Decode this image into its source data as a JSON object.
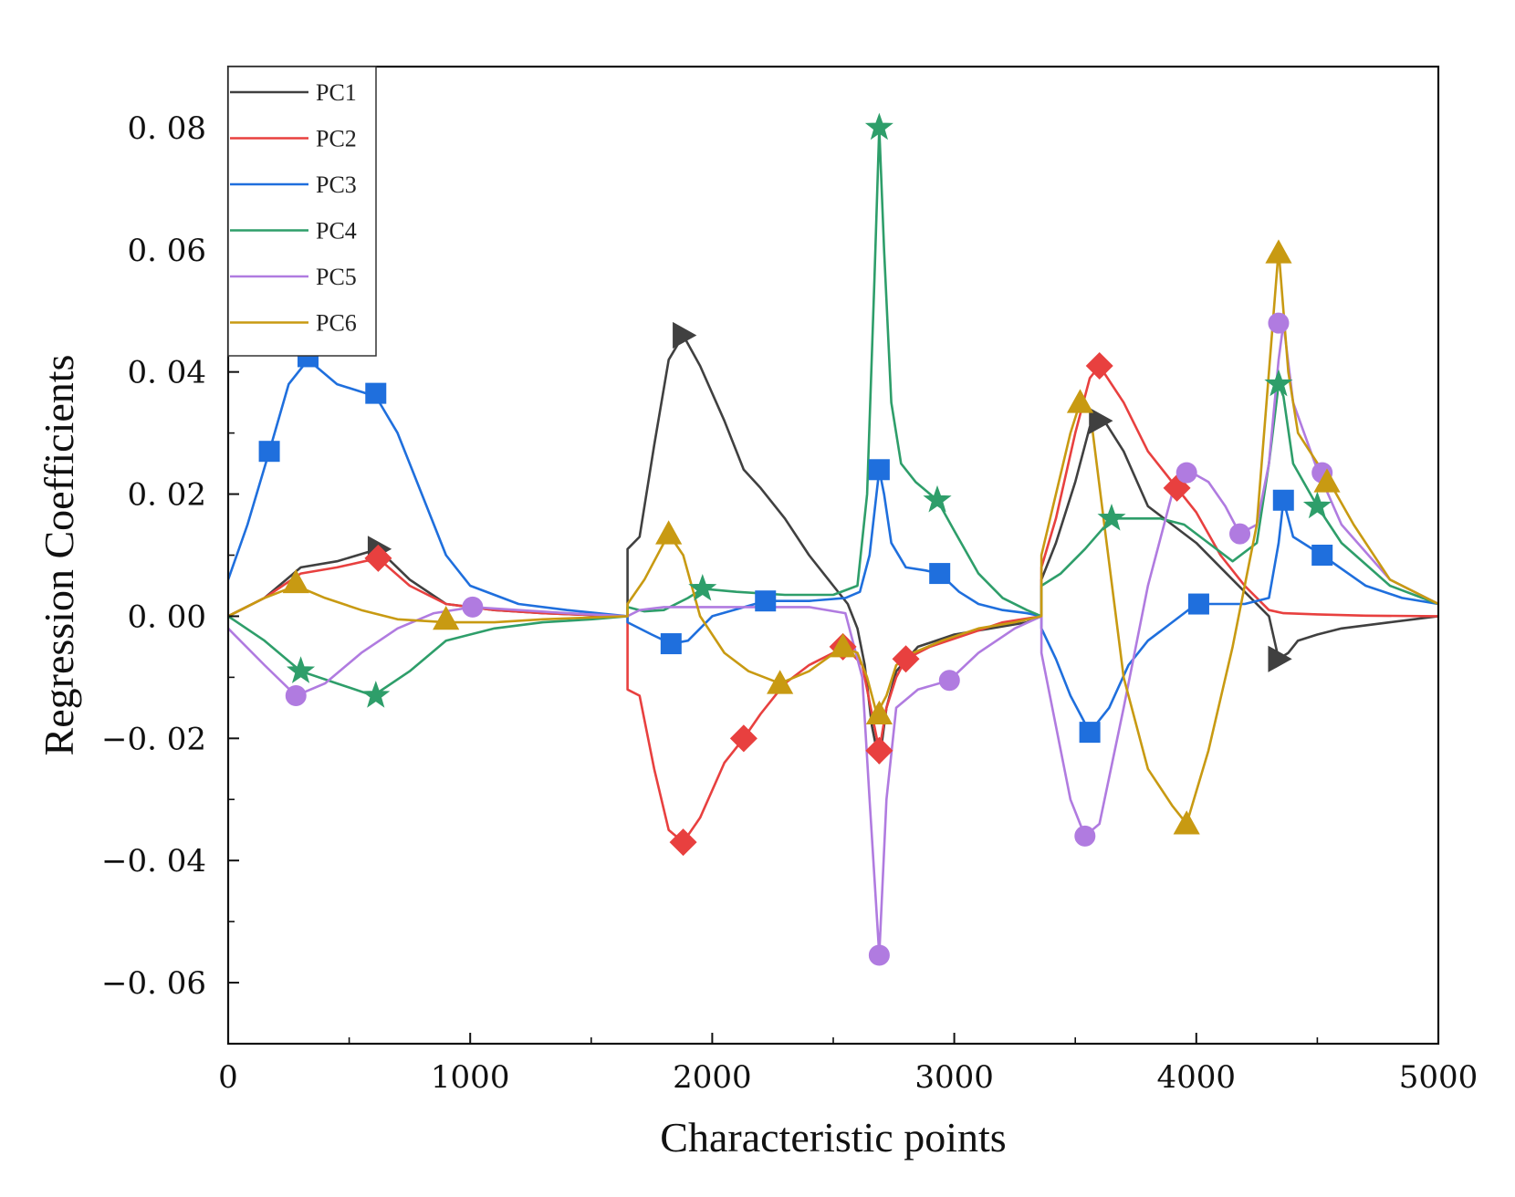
{
  "chart_data": {
    "type": "line",
    "title": "",
    "xlabel": "Characteristic points",
    "ylabel": "Regression Coefficients",
    "xlim": [
      0,
      5000
    ],
    "ylim": [
      -0.07,
      0.09
    ],
    "xticks": [
      0,
      1000,
      2000,
      3000,
      4000,
      5000
    ],
    "xtick_labels": [
      "0",
      "1000",
      "2000",
      "3000",
      "4000",
      "5000"
    ],
    "yticks": [
      -0.06,
      -0.04,
      -0.02,
      0.0,
      0.02,
      0.04,
      0.06,
      0.08
    ],
    "ytick_labels": [
      "−0. 06",
      "−0. 04",
      "−0. 02",
      "0. 00",
      "0. 02",
      "0. 04",
      "0. 06",
      "0. 08"
    ],
    "grid": false,
    "legend_position": "top-left",
    "series": [
      {
        "name": "PC1",
        "color": "#404040",
        "marker": "triangle-right",
        "x": [
          0,
          150,
          300,
          450,
          620,
          750,
          900,
          1100,
          1300,
          1500,
          1650,
          1650,
          1700,
          1760,
          1820,
          1880,
          1950,
          2050,
          2130,
          2200,
          2300,
          2400,
          2500,
          2560,
          2600,
          2630,
          2660,
          2690,
          2720,
          2760,
          2850,
          3000,
          3150,
          3300,
          3360,
          3360,
          3420,
          3500,
          3560,
          3620,
          3700,
          3800,
          3900,
          4000,
          4100,
          4200,
          4300,
          4340,
          4380,
          4420,
          4500,
          4600,
          4800,
          5000
        ],
        "y": [
          0.0,
          0.003,
          0.008,
          0.009,
          0.011,
          0.006,
          0.002,
          0.001,
          0.0005,
          0.0002,
          0.0,
          0.011,
          0.013,
          0.028,
          0.042,
          0.046,
          0.041,
          0.032,
          0.024,
          0.021,
          0.016,
          0.01,
          0.005,
          0.002,
          -0.002,
          -0.008,
          -0.018,
          -0.024,
          -0.015,
          -0.009,
          -0.005,
          -0.003,
          -0.002,
          -0.001,
          0.0,
          0.006,
          0.012,
          0.022,
          0.031,
          0.032,
          0.027,
          0.018,
          0.015,
          0.012,
          0.008,
          0.004,
          0.0,
          -0.007,
          -0.006,
          -0.004,
          -0.003,
          -0.002,
          -0.001,
          0.0
        ],
        "markers_x": [
          620,
          1880,
          3600,
          4340
        ],
        "markers_y": [
          0.011,
          0.046,
          0.032,
          -0.007
        ]
      },
      {
        "name": "PC2",
        "color": "#e8403f",
        "marker": "diamond",
        "x": [
          0,
          150,
          300,
          450,
          620,
          750,
          900,
          1100,
          1300,
          1500,
          1650,
          1650,
          1700,
          1760,
          1820,
          1880,
          1950,
          2050,
          2130,
          2200,
          2300,
          2400,
          2550,
          2620,
          2660,
          2690,
          2720,
          2760,
          2800,
          2900,
          3050,
          3200,
          3360,
          3360,
          3420,
          3500,
          3560,
          3600,
          3700,
          3800,
          3920,
          4000,
          4100,
          4200,
          4300,
          4360,
          4500,
          4700,
          5000
        ],
        "y": [
          0.0,
          0.003,
          0.007,
          0.008,
          0.0095,
          0.005,
          0.002,
          0.001,
          0.0005,
          0.0002,
          0.0,
          -0.012,
          -0.013,
          -0.025,
          -0.035,
          -0.037,
          -0.033,
          -0.024,
          -0.02,
          -0.016,
          -0.011,
          -0.008,
          -0.005,
          -0.008,
          -0.016,
          -0.022,
          -0.015,
          -0.01,
          -0.007,
          -0.005,
          -0.003,
          -0.001,
          0.0,
          0.008,
          0.016,
          0.03,
          0.039,
          0.041,
          0.035,
          0.027,
          0.021,
          0.017,
          0.01,
          0.005,
          0.001,
          0.0005,
          0.0003,
          0.0001,
          0.0
        ],
        "markers_x": [
          620,
          1880,
          2130,
          2540,
          2690,
          2800,
          3600,
          3920
        ],
        "markers_y": [
          0.0095,
          -0.037,
          -0.02,
          -0.005,
          -0.022,
          -0.007,
          0.041,
          0.021
        ]
      },
      {
        "name": "PC3",
        "color": "#1f6fdd",
        "marker": "square",
        "x": [
          0,
          80,
          170,
          250,
          330,
          450,
          610,
          700,
          800,
          900,
          1000,
          1200,
          1400,
          1650,
          1650,
          1750,
          1830,
          1900,
          2000,
          2220,
          2400,
          2550,
          2610,
          2650,
          2690,
          2710,
          2740,
          2800,
          2880,
          2940,
          3020,
          3100,
          3200,
          3300,
          3360,
          3360,
          3420,
          3480,
          3560,
          3640,
          3720,
          3800,
          3900,
          4000,
          4100,
          4200,
          4300,
          4340,
          4360,
          4400,
          4520,
          4700,
          4850,
          5000
        ],
        "y": [
          0.006,
          0.015,
          0.027,
          0.038,
          0.042,
          0.038,
          0.036,
          0.03,
          0.02,
          0.01,
          0.005,
          0.002,
          0.001,
          0.0,
          -0.001,
          -0.003,
          -0.0045,
          -0.004,
          0.0,
          0.0025,
          0.0025,
          0.003,
          0.004,
          0.01,
          0.024,
          0.02,
          0.012,
          0.008,
          0.0075,
          0.007,
          0.004,
          0.002,
          0.001,
          0.0005,
          0.0,
          -0.002,
          -0.007,
          -0.013,
          -0.019,
          -0.015,
          -0.008,
          -0.004,
          -0.001,
          0.002,
          0.002,
          0.002,
          0.003,
          0.012,
          0.019,
          0.013,
          0.01,
          0.005,
          0.003,
          0.002
        ],
        "markers_x": [
          170,
          330,
          610,
          1830,
          2220,
          2690,
          2940,
          3560,
          4010,
          4360,
          4520
        ],
        "markers_y": [
          0.027,
          0.0425,
          0.0365,
          -0.0045,
          0.0025,
          0.024,
          0.007,
          -0.019,
          0.002,
          0.019,
          0.01
        ]
      },
      {
        "name": "PC4",
        "color": "#2e9e6a",
        "marker": "star",
        "x": [
          0,
          150,
          300,
          450,
          600,
          750,
          900,
          1100,
          1300,
          1500,
          1650,
          1650,
          1720,
          1800,
          1900,
          1960,
          2100,
          2300,
          2500,
          2600,
          2640,
          2670,
          2690,
          2710,
          2740,
          2780,
          2840,
          2930,
          3000,
          3100,
          3200,
          3300,
          3360,
          3360,
          3440,
          3540,
          3650,
          3750,
          3850,
          3950,
          4050,
          4150,
          4250,
          4300,
          4340,
          4360,
          4400,
          4500,
          4600,
          4800,
          5000
        ],
        "y": [
          0.0,
          -0.004,
          -0.009,
          -0.011,
          -0.013,
          -0.009,
          -0.004,
          -0.002,
          -0.001,
          -0.0005,
          0.0,
          0.0015,
          0.0008,
          0.001,
          0.003,
          0.0045,
          0.004,
          0.0035,
          0.0035,
          0.005,
          0.02,
          0.055,
          0.08,
          0.06,
          0.035,
          0.025,
          0.022,
          0.019,
          0.014,
          0.007,
          0.003,
          0.001,
          0.0,
          0.005,
          0.007,
          0.011,
          0.016,
          0.016,
          0.016,
          0.015,
          0.012,
          0.009,
          0.012,
          0.025,
          0.038,
          0.036,
          0.025,
          0.018,
          0.012,
          0.005,
          0.002
        ],
        "markers_x": [
          300,
          610,
          1960,
          2690,
          2930,
          3650,
          4340,
          4500
        ],
        "markers_y": [
          -0.009,
          -0.013,
          0.0045,
          0.08,
          0.019,
          0.016,
          0.038,
          0.018
        ]
      },
      {
        "name": "PC5",
        "color": "#b07be0",
        "marker": "circle",
        "x": [
          0,
          150,
          280,
          400,
          550,
          700,
          850,
          1010,
          1200,
          1400,
          1650,
          1700,
          1800,
          2000,
          2200,
          2400,
          2550,
          2620,
          2650,
          2690,
          2720,
          2760,
          2850,
          2980,
          3100,
          3250,
          3360,
          3360,
          3420,
          3480,
          3540,
          3600,
          3700,
          3800,
          3900,
          3960,
          4050,
          4120,
          4180,
          4250,
          4300,
          4340,
          4360,
          4400,
          4500,
          4600,
          4800,
          5000
        ],
        "y": [
          -0.002,
          -0.008,
          -0.013,
          -0.011,
          -0.006,
          -0.002,
          0.0005,
          0.0015,
          0.001,
          0.0005,
          0.0,
          0.001,
          0.0015,
          0.0015,
          0.0015,
          0.0015,
          0.0005,
          -0.01,
          -0.03,
          -0.0555,
          -0.03,
          -0.015,
          -0.012,
          -0.0105,
          -0.006,
          -0.002,
          0.0,
          -0.006,
          -0.018,
          -0.03,
          -0.036,
          -0.034,
          -0.015,
          0.005,
          0.02,
          0.024,
          0.022,
          0.018,
          0.0135,
          0.015,
          0.025,
          0.042,
          0.048,
          0.035,
          0.024,
          0.015,
          0.006,
          0.002
        ],
        "markers_x": [
          280,
          1010,
          2690,
          2980,
          3540,
          3960,
          4180,
          4340,
          4520
        ],
        "markers_y": [
          -0.013,
          0.0015,
          -0.0555,
          -0.0105,
          -0.036,
          0.0235,
          0.0135,
          0.048,
          0.0235
        ]
      },
      {
        "name": "PC6",
        "color": "#c89a12",
        "marker": "triangle-up",
        "x": [
          0,
          150,
          280,
          400,
          550,
          700,
          900,
          1100,
          1300,
          1500,
          1650,
          1650,
          1720,
          1820,
          1880,
          1950,
          2050,
          2150,
          2280,
          2400,
          2540,
          2600,
          2640,
          2680,
          2720,
          2760,
          2830,
          2950,
          3100,
          3250,
          3360,
          3360,
          3420,
          3480,
          3520,
          3560,
          3620,
          3700,
          3800,
          3900,
          3960,
          4050,
          4150,
          4250,
          4300,
          4340,
          4380,
          4420,
          4550,
          4650,
          4800,
          5000
        ],
        "y": [
          0.0,
          0.003,
          0.005,
          0.003,
          0.001,
          -0.0005,
          -0.001,
          -0.001,
          -0.0005,
          -0.0002,
          0.0,
          0.002,
          0.006,
          0.0135,
          0.01,
          0.0,
          -0.006,
          -0.009,
          -0.011,
          -0.009,
          -0.005,
          -0.006,
          -0.01,
          -0.016,
          -0.013,
          -0.008,
          -0.006,
          -0.004,
          -0.002,
          -0.001,
          0.0,
          0.01,
          0.02,
          0.03,
          0.035,
          0.034,
          0.015,
          -0.01,
          -0.025,
          -0.031,
          -0.034,
          -0.022,
          -0.005,
          0.015,
          0.04,
          0.06,
          0.04,
          0.03,
          0.022,
          0.015,
          0.006,
          0.002
        ],
        "markers_x": [
          280,
          900,
          1820,
          2280,
          2540,
          2690,
          3520,
          3960,
          4340,
          4540
        ],
        "markers_y": [
          0.0055,
          -0.0005,
          0.0135,
          -0.011,
          -0.005,
          -0.016,
          0.035,
          -0.034,
          0.0595,
          0.022
        ]
      }
    ]
  }
}
